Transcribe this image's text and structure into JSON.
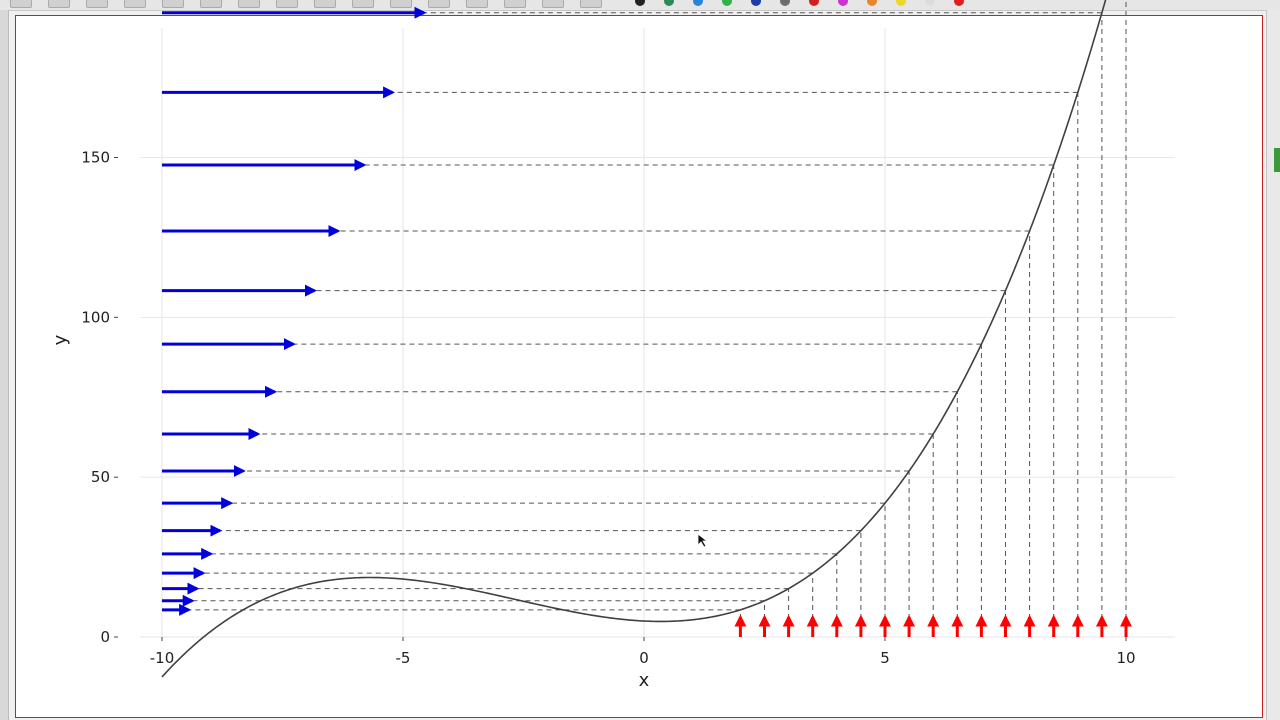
{
  "toolbar": {
    "icons": [
      "file-icon",
      "shape-icon",
      "pen-icon",
      "eraser-icon",
      "text-icon",
      "formula-icon",
      "rect-icon",
      "lasso-icon",
      "link-icon",
      "image-icon",
      "folder-icon",
      "hand-icon",
      "refresh-icon",
      "pointer-icon",
      "marker-icon",
      "fill-icon"
    ],
    "palette": [
      "#222222",
      "#2e8b57",
      "#2b83d9",
      "#33b24a",
      "#1e3aa8",
      "#6d6d6d",
      "#d02020",
      "#cc33cc",
      "#e8862b",
      "#e8d82b",
      "#dddddd",
      "#e02020"
    ]
  },
  "chart_data": {
    "type": "line",
    "title": "",
    "xlabel": "x",
    "ylabel": "y",
    "xlim": [
      -10,
      10.2
    ],
    "ylim": [
      0,
      186
    ],
    "grid": true,
    "x_ticks": [
      -10,
      -5,
      0,
      5,
      10
    ],
    "y_ticks": [
      0,
      50,
      100,
      150
    ],
    "curve": {
      "function": "y = x^3/8 + x^2 - 3x/4 + 5",
      "x_range": [
        -10,
        10
      ],
      "color": "#404040"
    },
    "sample_points_x": [
      2,
      2.5,
      3,
      3.5,
      4,
      4.5,
      5,
      5.5,
      6,
      6.5,
      7,
      7.5,
      8,
      8.5,
      9,
      9.5,
      10
    ],
    "input_arrow_color": "#ff0000",
    "output_arrow_color": "#0000dd",
    "guide_line_color": "#555555",
    "guide_line_style": "dashed"
  }
}
